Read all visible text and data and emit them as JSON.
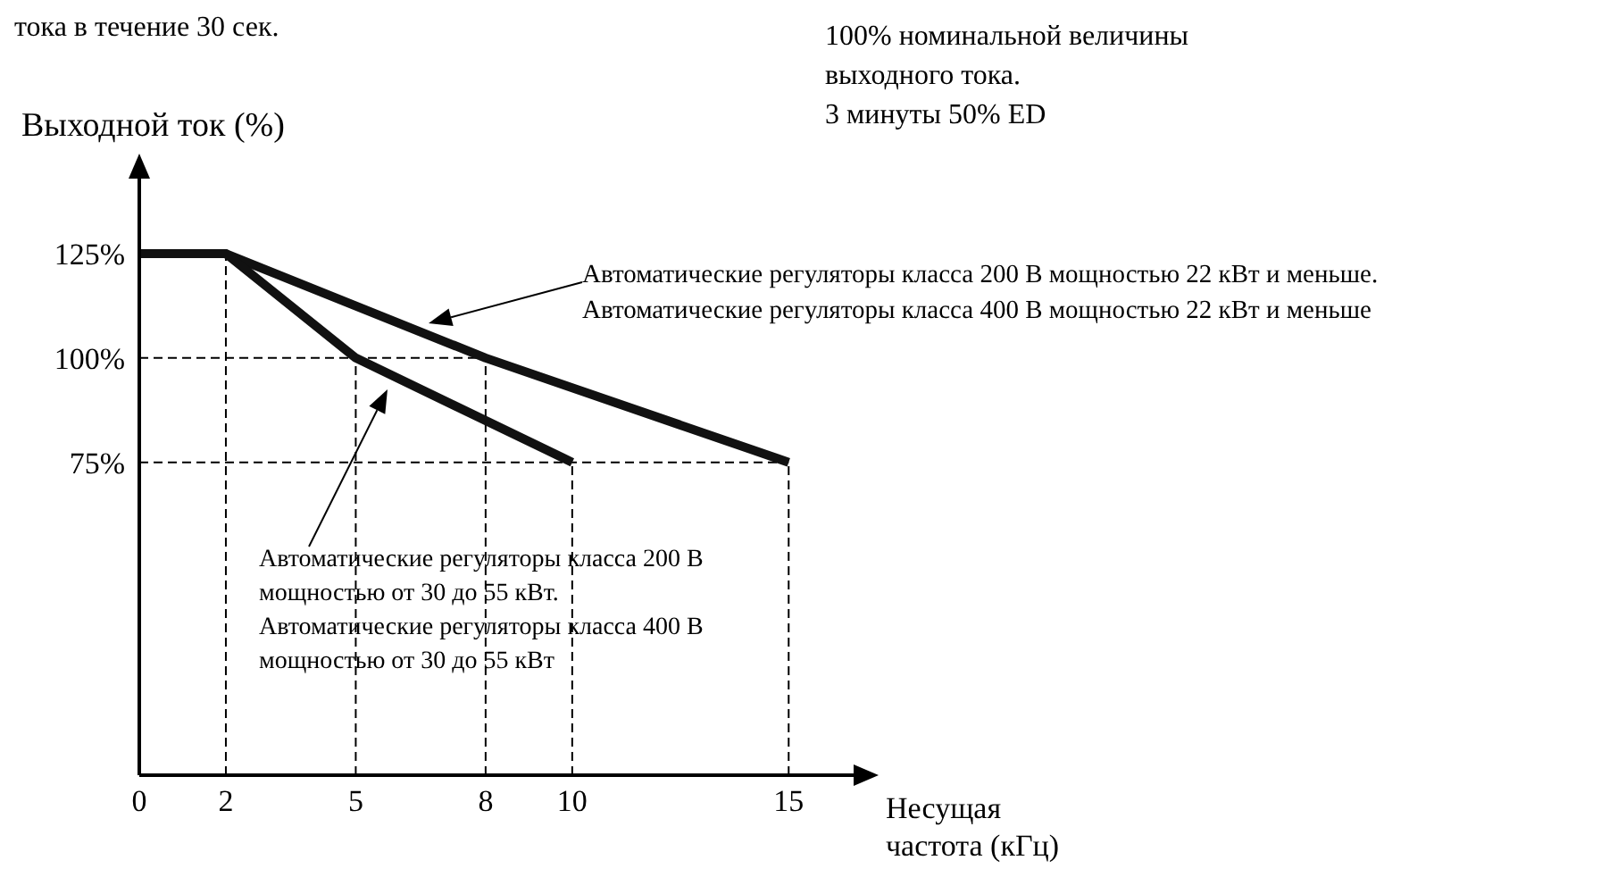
{
  "chart_data": {
    "type": "line",
    "xlabel": "Несущая частота (кГц)",
    "ylabel": "Выходной ток (%)",
    "xlim": [
      0,
      16.5
    ],
    "xticks": [
      0,
      2,
      5,
      8,
      10,
      15
    ],
    "ylim": [
      0,
      143
    ],
    "yticks": [
      {
        "value": 75,
        "label": "75%"
      },
      {
        "value": 100,
        "label": "100%"
      },
      {
        "value": 125,
        "label": "125%"
      }
    ],
    "marker": "none",
    "series": [
      {
        "color": "#111111",
        "x": [
          0,
          2,
          8,
          15
        ],
        "values": [
          125,
          125,
          100,
          75
        ]
      },
      {
        "color": "#111111",
        "x": [
          0,
          2,
          5,
          10
        ],
        "values": [
          125,
          125,
          100,
          75
        ]
      }
    ],
    "ref_lines": [
      {
        "axis": "x",
        "value": 2,
        "color": "#000000",
        "line_style": "dashed"
      },
      {
        "axis": "x",
        "value": 5,
        "color": "#000000",
        "line_style": "dashed"
      },
      {
        "axis": "x",
        "value": 8,
        "color": "#000000",
        "line_style": "dashed"
      },
      {
        "axis": "x",
        "value": 10,
        "color": "#000000",
        "line_style": "dashed"
      },
      {
        "axis": "x",
        "value": 15,
        "color": "#000000",
        "line_style": "dashed"
      },
      {
        "axis": "y",
        "value": 100,
        "color": "#000000",
        "line_style": "dashed"
      },
      {
        "axis": "y",
        "value": 75,
        "color": "#000000",
        "line_style": "dashed"
      }
    ],
    "annotations": [
      "тока в течение 30 сек.",
      "100% номинальной величины\nвыходного тока.\n3 минуты 50% ED",
      "Автоматические регуляторы класса 200 В мощностью 22 кВт и меньше.\nАвтоматические регуляторы класса 400 В мощностью 22 кВт и меньше",
      "Автоматические регуляторы класса 200 В\nмощностью от 30 до 55 кВт.\nАвтоматические регуляторы класса 400 В\nмощностью от 30 до 55 кВт"
    ]
  }
}
